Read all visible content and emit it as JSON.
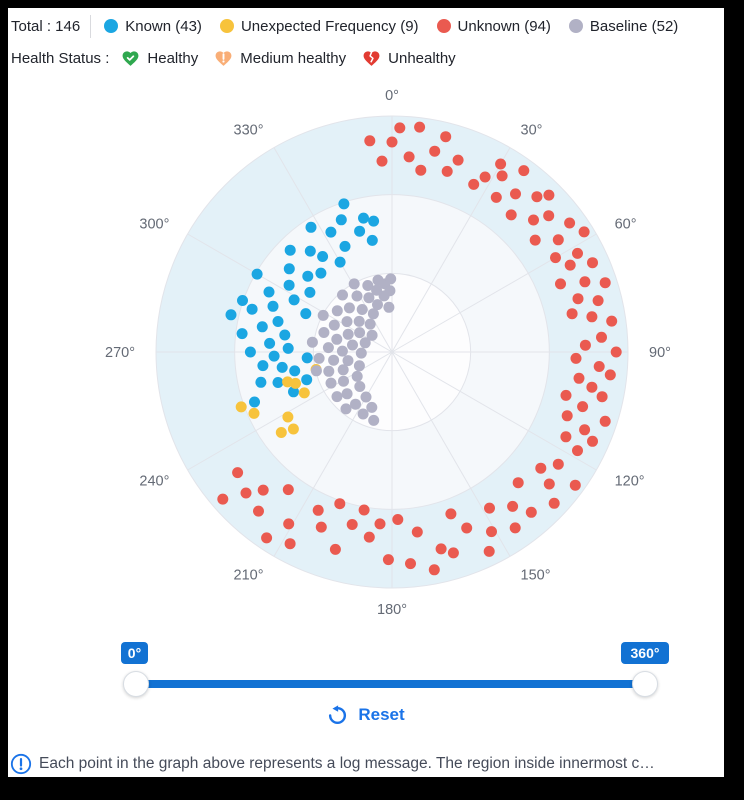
{
  "header": {
    "total_label": "Total : 146",
    "legend": [
      {
        "name": "known",
        "label": "Known (43)",
        "color": "#1ba6e2"
      },
      {
        "name": "unexpected-frequency",
        "label": "Unexpected Frequency (9)",
        "color": "#f7c33c"
      },
      {
        "name": "unknown",
        "label": "Unknown (94)",
        "color": "#ea5a50"
      },
      {
        "name": "baseline",
        "label": "Baseline (52)",
        "color": "#b1b1c5"
      }
    ],
    "health_status_label": "Health Status :",
    "health": [
      {
        "name": "healthy",
        "label": "Healthy",
        "icon": "heart-check-icon",
        "color": "#2fa84f"
      },
      {
        "name": "medium-healthy",
        "label": "Medium healthy",
        "icon": "heart-exclamation-icon",
        "color": "#f9ae77"
      },
      {
        "name": "unhealthy",
        "label": "Unhealthy",
        "icon": "heart-broken-icon",
        "color": "#e23b32"
      }
    ]
  },
  "chart_data": {
    "type": "scatter",
    "coordinate": "polar",
    "title": "",
    "angle_axis": {
      "direction": "clockwise",
      "start": "top",
      "ticks": [
        "0°",
        "30°",
        "60°",
        "90°",
        "120°",
        "150°",
        "180°",
        "210°",
        "240°",
        "270°",
        "300°",
        "330°"
      ]
    },
    "radius_axis": {
      "range": [
        0,
        1
      ],
      "ring_fractions": [
        0.3333,
        0.6667,
        1.0
      ]
    },
    "ring_fills": [
      "#fdfdfe",
      "#f5f8fb",
      "#e3f1f8"
    ],
    "grid_color": "#e2e4ea",
    "label_color": "#646a75",
    "point_radius": 5.5,
    "series": [
      {
        "name": "Known",
        "color": "#1ba6e2",
        "points": [
          [
            248,
            0.45
          ],
          [
            250,
            0.62
          ],
          [
            252,
            0.38
          ],
          [
            255,
            0.5
          ],
          [
            257,
            0.57
          ],
          [
            259,
            0.42
          ],
          [
            262,
            0.47
          ],
          [
            264,
            0.55
          ],
          [
            266,
            0.36
          ],
          [
            268,
            0.5
          ],
          [
            270,
            0.6
          ],
          [
            272,
            0.44
          ],
          [
            274,
            0.52
          ],
          [
            277,
            0.64
          ],
          [
            279,
            0.46
          ],
          [
            281,
            0.56
          ],
          [
            283,
            0.7
          ],
          [
            285,
            0.5
          ],
          [
            287,
            0.62
          ],
          [
            289,
            0.67
          ],
          [
            291,
            0.54
          ],
          [
            294,
            0.4
          ],
          [
            296,
            0.58
          ],
          [
            298,
            0.47
          ],
          [
            300,
            0.66
          ],
          [
            303,
            0.52
          ],
          [
            306,
            0.43
          ],
          [
            309,
            0.56
          ],
          [
            312,
            0.48
          ],
          [
            315,
            0.61
          ],
          [
            318,
            0.45
          ],
          [
            321,
            0.55
          ],
          [
            324,
            0.5
          ],
          [
            327,
            0.63
          ],
          [
            330,
            0.44
          ],
          [
            333,
            0.57
          ],
          [
            336,
            0.49
          ],
          [
            339,
            0.6
          ],
          [
            342,
            0.66
          ],
          [
            345,
            0.53
          ],
          [
            348,
            0.58
          ],
          [
            350,
            0.48
          ],
          [
            352,
            0.56
          ]
        ]
      },
      {
        "name": "Unexpected Frequency",
        "color": "#f7c33c",
        "points": [
          [
            250,
            0.68
          ],
          [
            246,
            0.64
          ],
          [
            254,
            0.46
          ],
          [
            252,
            0.43
          ],
          [
            245,
            0.41
          ],
          [
            238,
            0.52
          ],
          [
            234,
            0.58
          ],
          [
            232,
            0.53
          ],
          [
            257,
            0.33
          ]
        ]
      },
      {
        "name": "Unknown",
        "color": "#ea5a50",
        "points": [
          [
            354,
            0.9
          ],
          [
            357,
            0.81
          ],
          [
            0,
            0.89
          ],
          [
            2,
            0.95
          ],
          [
            5,
            0.83
          ],
          [
            7,
            0.96
          ],
          [
            9,
            0.78
          ],
          [
            12,
            0.87
          ],
          [
            14,
            0.94
          ],
          [
            17,
            0.8
          ],
          [
            19,
            0.86
          ],
          [
            26,
            0.79
          ],
          [
            28,
            0.84
          ],
          [
            30,
            0.92
          ],
          [
            32,
            0.88
          ],
          [
            34,
            0.79
          ],
          [
            36,
            0.95
          ],
          [
            38,
            0.85
          ],
          [
            41,
            0.77
          ],
          [
            43,
            0.9
          ],
          [
            45,
            0.94
          ],
          [
            47,
            0.82
          ],
          [
            49,
            0.88
          ],
          [
            52,
            0.77
          ],
          [
            54,
            0.93
          ],
          [
            56,
            0.85
          ],
          [
            58,
            0.96
          ],
          [
            60,
            0.8
          ],
          [
            62,
            0.89
          ],
          [
            64,
            0.84
          ],
          [
            66,
            0.93
          ],
          [
            68,
            0.77
          ],
          [
            70,
            0.87
          ],
          [
            72,
            0.95
          ],
          [
            74,
            0.82
          ],
          [
            76,
            0.9
          ],
          [
            78,
            0.78
          ],
          [
            80,
            0.86
          ],
          [
            82,
            0.94
          ],
          [
            86,
            0.89
          ],
          [
            88,
            0.82
          ],
          [
            90,
            0.95
          ],
          [
            92,
            0.78
          ],
          [
            94,
            0.88
          ],
          [
            96,
            0.93
          ],
          [
            98,
            0.8
          ],
          [
            100,
            0.86
          ],
          [
            102,
            0.91
          ],
          [
            104,
            0.76
          ],
          [
            106,
            0.84
          ],
          [
            108,
            0.95
          ],
          [
            110,
            0.79
          ],
          [
            112,
            0.88
          ],
          [
            114,
            0.93
          ],
          [
            116,
            0.82
          ],
          [
            118,
            0.89
          ],
          [
            124,
            0.85
          ],
          [
            126,
            0.96
          ],
          [
            128,
            0.8
          ],
          [
            130,
            0.87
          ],
          [
            133,
            0.94
          ],
          [
            136,
            0.77
          ],
          [
            139,
            0.9
          ],
          [
            142,
            0.83
          ],
          [
            145,
            0.91
          ],
          [
            148,
            0.78
          ],
          [
            151,
            0.87
          ],
          [
            154,
            0.94
          ],
          [
            157,
            0.81
          ],
          [
            160,
            0.73
          ],
          [
            163,
            0.89
          ],
          [
            166,
            0.86
          ],
          [
            169,
            0.94
          ],
          [
            172,
            0.77
          ],
          [
            175,
            0.9
          ],
          [
            178,
            0.71
          ],
          [
            181,
            0.88
          ],
          [
            184,
            0.73
          ],
          [
            187,
            0.79
          ],
          [
            190,
            0.68
          ],
          [
            193,
            0.75
          ],
          [
            196,
            0.87
          ],
          [
            199,
            0.68
          ],
          [
            202,
            0.8
          ],
          [
            205,
            0.74
          ],
          [
            208,
            0.92
          ],
          [
            211,
            0.85
          ],
          [
            214,
            0.95
          ],
          [
            217,
            0.73
          ],
          [
            220,
            0.88
          ],
          [
            223,
            0.8
          ],
          [
            226,
            0.86
          ],
          [
            229,
            0.95
          ],
          [
            232,
            0.83
          ]
        ]
      },
      {
        "name": "Baseline",
        "color": "#b1b1c5",
        "points": [
          [
            195,
            0.3
          ],
          [
            200,
            0.25
          ],
          [
            205,
            0.29
          ],
          [
            210,
            0.22
          ],
          [
            215,
            0.27
          ],
          [
            219,
            0.31
          ],
          [
            223,
            0.2
          ],
          [
            227,
            0.26
          ],
          [
            231,
            0.3
          ],
          [
            235,
            0.18
          ],
          [
            239,
            0.24
          ],
          [
            243,
            0.29
          ],
          [
            247,
            0.15
          ],
          [
            250,
            0.22
          ],
          [
            253,
            0.28
          ],
          [
            256,
            0.33
          ],
          [
            259,
            0.19
          ],
          [
            262,
            0.25
          ],
          [
            265,
            0.31
          ],
          [
            268,
            0.13
          ],
          [
            271,
            0.21
          ],
          [
            274,
            0.27
          ],
          [
            277,
            0.34
          ],
          [
            280,
            0.17
          ],
          [
            283,
            0.24
          ],
          [
            286,
            0.3
          ],
          [
            289,
            0.12
          ],
          [
            292,
            0.2
          ],
          [
            295,
            0.27
          ],
          [
            298,
            0.33
          ],
          [
            301,
            0.16
          ],
          [
            304,
            0.23
          ],
          [
            307,
            0.29
          ],
          [
            310,
            0.11
          ],
          [
            313,
            0.19
          ],
          [
            316,
            0.26
          ],
          [
            319,
            0.32
          ],
          [
            322,
            0.15
          ],
          [
            325,
            0.22
          ],
          [
            328,
            0.28
          ],
          [
            331,
            0.33
          ],
          [
            334,
            0.18
          ],
          [
            337,
            0.25
          ],
          [
            340,
            0.3
          ],
          [
            343,
            0.21
          ],
          [
            346,
            0.27
          ],
          [
            349,
            0.31
          ],
          [
            352,
            0.24
          ],
          [
            354,
            0.29
          ],
          [
            356,
            0.19
          ],
          [
            358,
            0.26
          ],
          [
            359,
            0.31
          ]
        ]
      }
    ]
  },
  "slider": {
    "start_label": "0°",
    "end_label": "360°",
    "track_color": "#1272d3"
  },
  "reset": {
    "label": "Reset",
    "color": "#1a73e8"
  },
  "footer": {
    "info_text": "Each point in the graph above represents a log message. The region inside innermost c…"
  }
}
